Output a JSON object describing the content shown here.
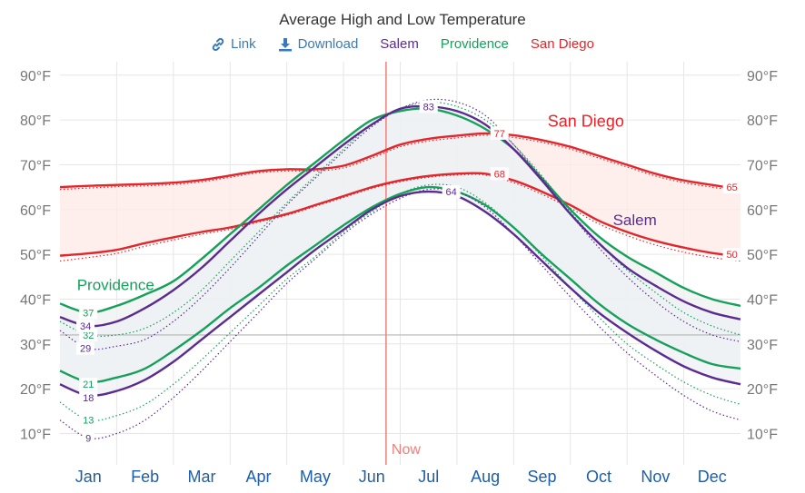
{
  "title": "Average High and Low Temperature",
  "legend": {
    "link_label": "Link",
    "download_label": "Download",
    "series": [
      {
        "name": "Salem",
        "color": "#5b2c8f"
      },
      {
        "name": "Providence",
        "color": "#16a05b"
      },
      {
        "name": "San Diego",
        "color": "#e3262b"
      }
    ]
  },
  "now_label": "Now",
  "chart_data": {
    "type": "line",
    "title": "Average High and Low Temperature",
    "x_unit": "month",
    "xlim": [
      0.5,
      12.5
    ],
    "ylim": [
      3,
      93
    ],
    "y_ticks": [
      10,
      20,
      30,
      40,
      50,
      60,
      70,
      80,
      90
    ],
    "y_tick_suffix": "°F",
    "months": [
      "Jan",
      "Feb",
      "Mar",
      "Apr",
      "May",
      "Jun",
      "Jul",
      "Aug",
      "Sep",
      "Oct",
      "Nov",
      "Dec"
    ],
    "now_x": 6.25,
    "reference_line_y": 32,
    "x": [
      0.5,
      1.0,
      1.5,
      2.0,
      2.5,
      3.0,
      3.5,
      4.0,
      4.5,
      5.0,
      5.5,
      6.0,
      6.5,
      7.0,
      7.5,
      8.0,
      8.5,
      9.0,
      9.5,
      10.0,
      10.5,
      11.0,
      11.5,
      12.0,
      12.5
    ],
    "series": [
      {
        "name": "San Diego",
        "color": "#e3262b",
        "band_color": "#fde8e6",
        "high": [
          65,
          65.3,
          65.5,
          65.7,
          66,
          66.6,
          67.6,
          68.6,
          69,
          69,
          69.8,
          72,
          74.5,
          75.8,
          76.5,
          77,
          76.6,
          75.5,
          74,
          72,
          70,
          68,
          66.5,
          65.5,
          64.5
        ],
        "low": [
          49.7,
          50.2,
          51,
          52.5,
          53.8,
          55,
          56,
          57.5,
          59,
          61,
          63,
          65,
          66.5,
          67.5,
          68,
          68,
          66.5,
          64,
          61,
          57.5,
          55,
          53,
          51.5,
          50.3,
          49.5
        ],
        "high_normal": [
          64.5,
          64.8,
          65.1,
          65.3,
          65.6,
          66.2,
          67.2,
          68.2,
          68.6,
          68.6,
          69.3,
          71.5,
          74,
          75.3,
          76,
          76.6,
          76.1,
          75,
          73.5,
          71.5,
          69.5,
          67.5,
          66,
          65,
          64
        ],
        "low_normal": [
          48.5,
          49.3,
          50.2,
          51.8,
          53.2,
          54.5,
          55.6,
          57.2,
          58.7,
          60.7,
          62.7,
          64.7,
          66.2,
          67.2,
          67.7,
          67.7,
          66,
          63.4,
          60.3,
          56.8,
          54.2,
          52.1,
          50.5,
          49.3,
          48.5
        ],
        "labels": [
          {
            "x": 8.25,
            "y": 77,
            "text": "77"
          },
          {
            "x": 8.25,
            "y": 68,
            "text": "68"
          },
          {
            "x": 12.35,
            "y": 65,
            "text": "65"
          },
          {
            "x": 12.35,
            "y": 50,
            "text": "50"
          }
        ]
      },
      {
        "name": "Providence",
        "color": "#16a05b",
        "band_color": "#eef2ef",
        "high": [
          39,
          37,
          38.5,
          41,
          44,
          49,
          54.5,
          60,
          65.5,
          70.5,
          75.5,
          80,
          82,
          82.5,
          81,
          78,
          73.5,
          67,
          60,
          54,
          49.5,
          46,
          42.5,
          40,
          38.5
        ],
        "low": [
          24,
          21.5,
          22.5,
          24.5,
          28.5,
          33,
          38,
          42.5,
          47.5,
          52,
          56.5,
          60.5,
          63.5,
          65,
          64,
          61,
          56,
          50,
          44.5,
          39,
          34.5,
          31,
          28,
          25.5,
          24.5
        ],
        "high_normal": [
          35,
          32,
          32,
          33.5,
          37,
          42,
          48.5,
          55,
          61.5,
          67.5,
          73.5,
          79,
          82.5,
          84,
          83,
          80,
          74.5,
          67.5,
          59.5,
          52.5,
          46.5,
          41.5,
          37,
          34,
          32
        ],
        "low_normal": [
          17,
          13,
          14,
          16.5,
          21,
          26.5,
          32.5,
          38.5,
          44.5,
          49.5,
          55,
          59.5,
          63.5,
          65.5,
          65,
          61.5,
          56,
          49.5,
          42.5,
          36,
          30,
          25.5,
          21.5,
          18.5,
          16.5
        ],
        "labels": [
          {
            "x": 1.0,
            "y": 37,
            "text": "37"
          },
          {
            "x": 1.0,
            "y": 32,
            "text": "32"
          },
          {
            "x": 1.0,
            "y": 21,
            "text": "21"
          },
          {
            "x": 1.0,
            "y": 13,
            "text": "13"
          }
        ],
        "series_label": {
          "x": 0.8,
          "y": 42,
          "text": "Providence"
        }
      },
      {
        "name": "Salem",
        "color": "#5b2c8f",
        "band_color": "#eef0f4",
        "high": [
          36,
          34,
          35,
          38,
          42,
          47,
          53,
          59,
          64.5,
          69.5,
          74.5,
          79,
          82.5,
          83,
          82,
          79,
          73.5,
          66.5,
          59,
          52.5,
          47,
          43,
          39.5,
          37,
          35.5
        ],
        "low": [
          21,
          18.5,
          19.5,
          22,
          26,
          31,
          36,
          41,
          46,
          51,
          55.5,
          60,
          63,
          64,
          63,
          59.5,
          54.5,
          48.5,
          42.5,
          37,
          32.5,
          28.5,
          25,
          22.5,
          21
        ],
        "high_normal": [
          33,
          29,
          29.5,
          31,
          35,
          40.5,
          47,
          54,
          61,
          67,
          73,
          78.5,
          82.5,
          84.5,
          84,
          81,
          74.5,
          67,
          59,
          51.5,
          45,
          39.5,
          35,
          32,
          30.5
        ],
        "low_normal": [
          13,
          9,
          10,
          13,
          18,
          24,
          30.5,
          37,
          43.5,
          49,
          54.5,
          59,
          62.5,
          64.5,
          64,
          60.5,
          54.5,
          47.5,
          40.5,
          34,
          28,
          23,
          18.5,
          15,
          13
        ],
        "labels": [
          {
            "x": 0.95,
            "y": 34,
            "text": "34"
          },
          {
            "x": 0.95,
            "y": 29,
            "text": "29"
          },
          {
            "x": 1.0,
            "y": 18,
            "text": "18"
          },
          {
            "x": 1.0,
            "y": 9,
            "text": "9"
          },
          {
            "x": 7.0,
            "y": 83,
            "text": "83"
          },
          {
            "x": 7.4,
            "y": 64,
            "text": "64"
          }
        ],
        "series_label": {
          "x": 10.25,
          "y": 56.5,
          "text": "Salem"
        }
      }
    ],
    "series_label_san_diego": {
      "x": 9.1,
      "y": 78.5,
      "text": "San Diego"
    }
  }
}
